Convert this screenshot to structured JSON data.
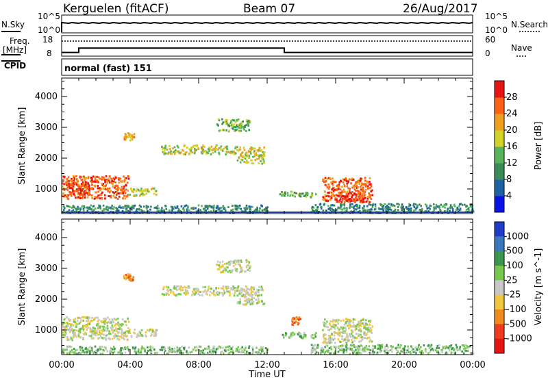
{
  "header": {
    "station": "Kerguelen (fitACF)",
    "beam": "Beam 07",
    "date": "26/Aug/2017"
  },
  "labels": {
    "nsky": "N.Sky",
    "nsearch": "N.Search",
    "freq_line1": "Freq.",
    "freq_line2": "[MHz]",
    "nave": "Nave",
    "cpid": "CPID",
    "cpid_value": "normal (fast) 151",
    "xlabel": "Time UT"
  },
  "noise_panel": {
    "left_ticks": [
      "10^5",
      "10^0"
    ],
    "right_ticks": [
      "10^5",
      "10^0"
    ]
  },
  "freq_panel": {
    "left_ticks": [
      "18",
      "8"
    ],
    "right_ticks": [
      "60",
      "0"
    ],
    "freq_steps": [
      [
        0,
        9.8
      ],
      [
        1.0,
        11.9
      ],
      [
        13.0,
        9.8
      ],
      [
        24,
        9.8
      ]
    ],
    "nave_level": 44
  },
  "chart_data": [
    {
      "type": "heatmap",
      "title": "Power",
      "xlabel": "Time UT",
      "ylabel": "Slant Range [km]",
      "x_ticks": [
        "00:00",
        "04:00",
        "08:00",
        "12:00",
        "16:00",
        "20:00",
        "00:00"
      ],
      "xlim": [
        0,
        24
      ],
      "y_ticks": [
        1000,
        2000,
        3000,
        4000
      ],
      "ylim": [
        200,
        4600
      ],
      "colorbar": {
        "label": "Power [dB]",
        "ticks": [
          "4",
          "8",
          "12",
          "16",
          "20",
          "24",
          "28"
        ],
        "colors": [
          "#0a14e6",
          "#1e64a5",
          "#3c8c5a",
          "#5ab45a",
          "#d2d228",
          "#f0a01e",
          "#ff6414",
          "#e61414"
        ]
      },
      "regions": [
        {
          "t": [
            0.0,
            3.9
          ],
          "r": [
            700,
            1450
          ],
          "level": 6
        },
        {
          "t": [
            0.4,
            1.6
          ],
          "r": [
            850,
            1250
          ],
          "level": 7
        },
        {
          "t": [
            3.9,
            5.5
          ],
          "r": [
            800,
            1050
          ],
          "level": 4
        },
        {
          "t": [
            3.6,
            4.2
          ],
          "r": [
            2600,
            2850
          ],
          "level": 5
        },
        {
          "t": [
            5.8,
            8.0
          ],
          "r": [
            2150,
            2450
          ],
          "level": 4
        },
        {
          "t": [
            8.1,
            10.2
          ],
          "r": [
            2150,
            2450
          ],
          "level": 4
        },
        {
          "t": [
            10.2,
            11.8
          ],
          "r": [
            1850,
            2400
          ],
          "level": 4
        },
        {
          "t": [
            9.0,
            11.0
          ],
          "r": [
            2900,
            3300
          ],
          "level": 3
        },
        {
          "t": [
            12.7,
            14.8
          ],
          "r": [
            750,
            950
          ],
          "level": 3
        },
        {
          "t": [
            15.2,
            18.1
          ],
          "r": [
            600,
            1400
          ],
          "level": 6
        },
        {
          "t": [
            16.0,
            17.7
          ],
          "r": [
            600,
            900
          ],
          "level": 7
        },
        {
          "t": [
            14.5,
            24.0
          ],
          "r": [
            250,
            550
          ],
          "level": 2
        },
        {
          "t": [
            0.0,
            12.0
          ],
          "r": [
            250,
            500
          ],
          "level": 2
        }
      ]
    },
    {
      "type": "heatmap",
      "title": "Velocity",
      "xlabel": "Time UT",
      "ylabel": "Slant Range [km]",
      "x_ticks": [
        "00:00",
        "04:00",
        "08:00",
        "12:00",
        "16:00",
        "20:00",
        "00:00"
      ],
      "xlim": [
        0,
        24
      ],
      "y_ticks": [
        1000,
        2000,
        3000,
        4000
      ],
      "ylim": [
        200,
        4600
      ],
      "colorbar": {
        "label": "Velocity [m s^-1]",
        "ticks": [
          "1000",
          "500",
          "100",
          "25",
          "-25",
          "-100",
          "-500",
          "-1000"
        ],
        "colors": [
          "#1e3cc8",
          "#3c78be",
          "#3c9650",
          "#78c850",
          "#c8c8c8",
          "#f0c83c",
          "#f08c1e",
          "#f03c1e",
          "#e61414"
        ]
      },
      "regions": [
        {
          "t": [
            0.0,
            3.9
          ],
          "r": [
            700,
            1450
          ],
          "level": 4
        },
        {
          "t": [
            3.9,
            5.5
          ],
          "r": [
            800,
            1050
          ],
          "level": 4
        },
        {
          "t": [
            3.6,
            4.2
          ],
          "r": [
            2600,
            2850
          ],
          "level": 6
        },
        {
          "t": [
            5.8,
            11.8
          ],
          "r": [
            2150,
            2450
          ],
          "level": 4
        },
        {
          "t": [
            10.2,
            11.8
          ],
          "r": [
            1850,
            2150
          ],
          "level": 4
        },
        {
          "t": [
            9.0,
            11.0
          ],
          "r": [
            2900,
            3300
          ],
          "level": 4
        },
        {
          "t": [
            13.4,
            13.9
          ],
          "r": [
            1200,
            1450
          ],
          "level": 6
        },
        {
          "t": [
            12.7,
            14.8
          ],
          "r": [
            750,
            950
          ],
          "level": 3
        },
        {
          "t": [
            15.2,
            18.1
          ],
          "r": [
            600,
            1400
          ],
          "level": 4
        },
        {
          "t": [
            14.5,
            24.0
          ],
          "r": [
            250,
            550
          ],
          "level": 3
        },
        {
          "t": [
            0.0,
            12.0
          ],
          "r": [
            250,
            500
          ],
          "level": 3
        }
      ]
    }
  ]
}
